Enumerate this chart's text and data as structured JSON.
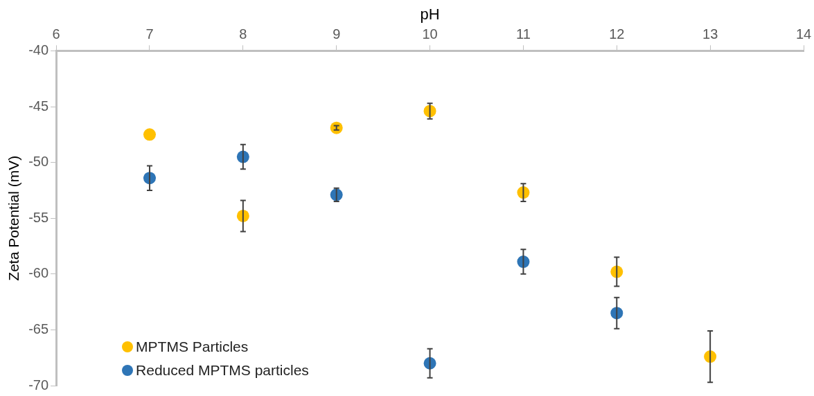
{
  "chart_data": {
    "type": "scatter",
    "xlabel": "pH",
    "ylabel": "Zeta Potential (mV)",
    "xlim": [
      6,
      14
    ],
    "xticks": [
      6,
      7,
      8,
      9,
      10,
      11,
      12,
      13,
      14
    ],
    "ylim": [
      -70,
      -40
    ],
    "yticks": [
      -70,
      -65,
      -60,
      -55,
      -50,
      -45,
      -40
    ],
    "grid": false,
    "legend": "bottom left",
    "marker": "circle",
    "series": [
      {
        "name": "MPTMS Particles",
        "color": "#ffc000",
        "x": [
          7,
          8,
          9,
          10,
          11,
          12,
          13
        ],
        "values": [
          -47.5,
          -54.8,
          -46.9,
          -45.4,
          -52.7,
          -59.8,
          -67.4
        ],
        "errors": [
          null,
          1.4,
          0.2,
          0.7,
          0.8,
          1.3,
          2.3
        ]
      },
      {
        "name": "Reduced MPTMS particles",
        "color": "#2e75b6",
        "x": [
          7,
          8,
          9,
          10,
          11,
          12
        ],
        "values": [
          -51.4,
          -49.5,
          -52.9,
          -68.0,
          -58.9,
          -63.5
        ],
        "errors": [
          1.1,
          1.1,
          0.6,
          1.3,
          1.1,
          1.4
        ]
      }
    ]
  }
}
